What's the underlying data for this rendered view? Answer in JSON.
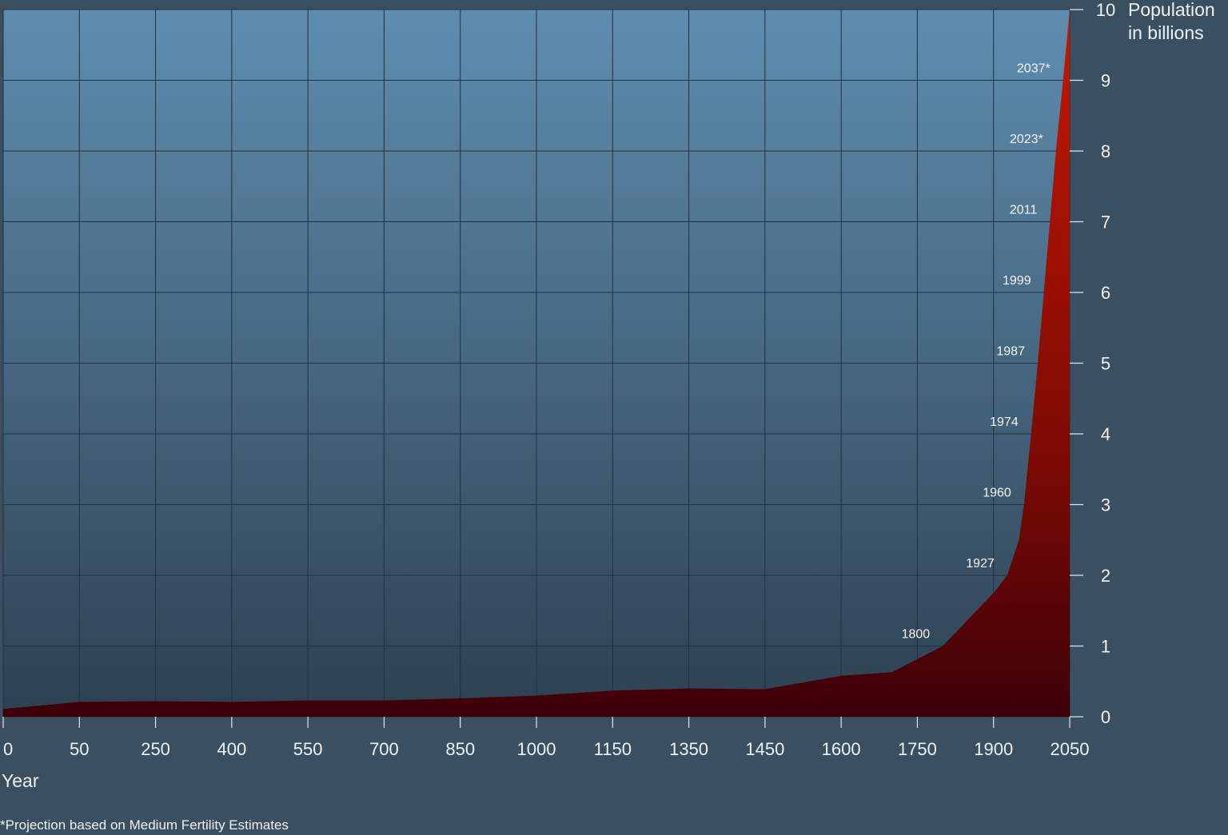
{
  "chart_data": {
    "type": "area",
    "title": "",
    "xlabel": "Year",
    "ylabel": [
      "Population",
      "in billions"
    ],
    "footnote": "*Projection based on Medium Fertility Estimates",
    "x_ticks": [
      "0",
      "50",
      "250",
      "400",
      "550",
      "700",
      "850",
      "1000",
      "1150",
      "1350",
      "1450",
      "1600",
      "1750",
      "1900",
      "2050"
    ],
    "y_ticks": [
      "0",
      "1",
      "2",
      "3",
      "4",
      "5",
      "6",
      "7",
      "8",
      "9",
      "10"
    ],
    "ylim": [
      0,
      10
    ],
    "grid": true,
    "series": [
      {
        "points": [
          {
            "x": "0",
            "y": 0.11
          },
          {
            "x": "50",
            "y": 0.21
          },
          {
            "x": "250",
            "y": 0.22
          },
          {
            "x": "400",
            "y": 0.21
          },
          {
            "x": "550",
            "y": 0.23
          },
          {
            "x": "700",
            "y": 0.23
          },
          {
            "x": "850",
            "y": 0.26
          },
          {
            "x": "1000",
            "y": 0.3
          },
          {
            "x": "1150",
            "y": 0.37
          },
          {
            "x": "1350",
            "y": 0.4
          },
          {
            "x": "1450",
            "y": 0.39
          },
          {
            "x": "1600",
            "y": 0.58
          },
          {
            "x": "1700",
            "y": 0.63
          },
          {
            "x": "1800",
            "y": 1.0
          },
          {
            "x": "1900",
            "y": 1.75
          },
          {
            "x": "1927",
            "y": 2.0
          },
          {
            "x": "1950",
            "y": 2.5
          },
          {
            "x": "1960",
            "y": 3.0
          },
          {
            "x": "1974",
            "y": 4.0
          },
          {
            "x": "1987",
            "y": 5.0
          },
          {
            "x": "1999",
            "y": 6.0
          },
          {
            "x": "2011",
            "y": 7.0
          },
          {
            "x": "2023",
            "y": 8.0
          },
          {
            "x": "2037",
            "y": 9.0
          },
          {
            "x": "2050",
            "y": 10.0
          }
        ]
      }
    ],
    "annotations": [
      {
        "label": "1800",
        "y": 1
      },
      {
        "label": "1927",
        "y": 2
      },
      {
        "label": "1960",
        "y": 3
      },
      {
        "label": "1974",
        "y": 4
      },
      {
        "label": "1987",
        "y": 5
      },
      {
        "label": "1999",
        "y": 6
      },
      {
        "label": "2011",
        "y": 7
      },
      {
        "label": "2023*",
        "y": 8
      },
      {
        "label": "2037*",
        "y": 9
      }
    ],
    "colors": {
      "background": "#3a4f5f",
      "plot_top": "#5f8db0",
      "plot_bottom": "#2d4150",
      "area_top": "#c41800",
      "area_bottom": "#3d0008",
      "grid": "#1e3242"
    }
  }
}
